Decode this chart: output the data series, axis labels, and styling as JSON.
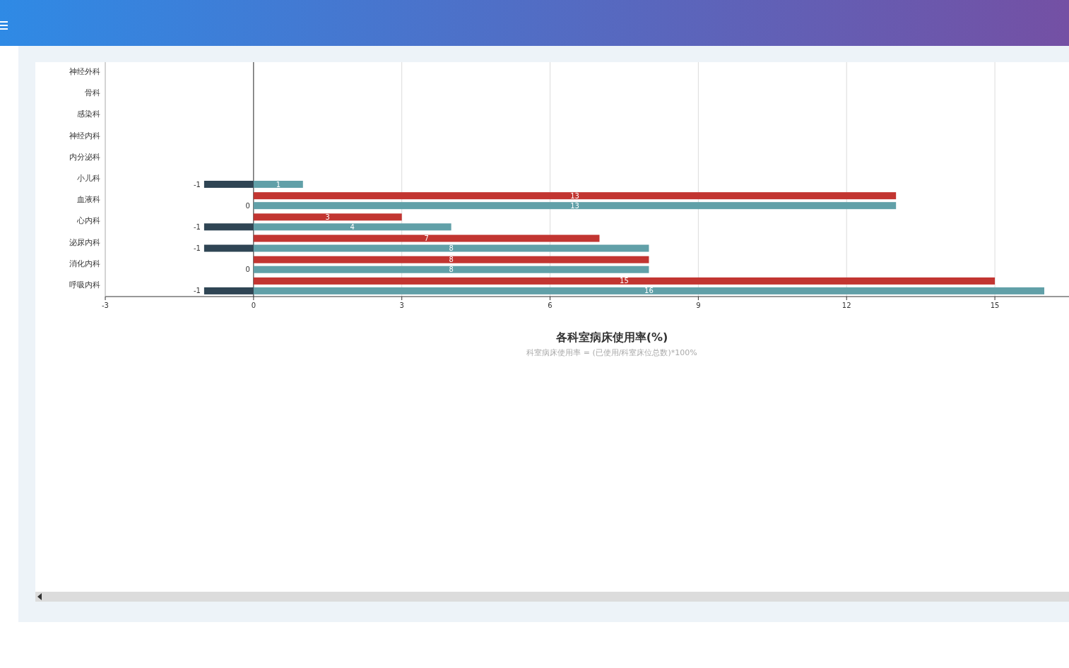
{
  "chart_data": {
    "type": "bar",
    "orientation": "horizontal",
    "title": "各科室病床使用率(%)",
    "subtitle": "科室病床使用率 = (已使用/科室床位总数)*100%",
    "categories": [
      "神经外科",
      "骨科",
      "感染科",
      "神经内科",
      "内分泌科",
      "小儿科",
      "血液科",
      "心内科",
      "泌尿内科",
      "消化内科",
      "呼吸内科"
    ],
    "series": [
      {
        "color": "#c23531",
        "values": [
          null,
          null,
          null,
          null,
          null,
          null,
          13,
          3,
          7,
          8,
          15
        ]
      },
      {
        "color": "#61a0a8",
        "values": [
          null,
          null,
          null,
          null,
          null,
          1,
          13,
          4,
          8,
          8,
          16
        ]
      },
      {
        "color": "#2f4554",
        "values": [
          null,
          null,
          null,
          null,
          null,
          -1,
          0,
          -1,
          -1,
          0,
          -1
        ]
      }
    ],
    "xlim": [
      -3,
      16.5
    ],
    "xticks": [
      -3,
      0,
      3,
      6,
      9,
      12,
      15
    ],
    "grid": "x",
    "data_labels": true
  }
}
